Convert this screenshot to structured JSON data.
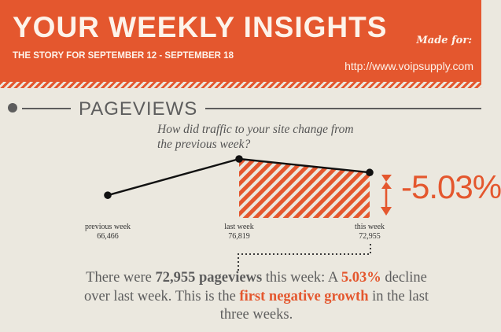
{
  "header": {
    "title": "YOUR WEEKLY INSIGHTS",
    "subtitle": "THE STORY FOR SEPTEMBER 12 - SEPTEMBER 18",
    "made_for_label": "Made for:",
    "site_url": "http://www.voipsupply.com"
  },
  "section": {
    "heading": "PAGEVIEWS",
    "question": "How did traffic to your site change from the previous week?"
  },
  "chart_data": {
    "type": "line",
    "categories": [
      "previous week",
      "last week",
      "this week"
    ],
    "values": [
      66466,
      76819,
      72955
    ],
    "value_labels": [
      "66,466",
      "76,819",
      "72,955"
    ],
    "change_label": "-5.03%",
    "highlight_segment": {
      "from": "last week",
      "to": "this week",
      "pattern": "diagonal-stripes"
    },
    "grid": false,
    "colors": {
      "line": "#111111",
      "accent": "#e4572e"
    }
  },
  "summary": {
    "p1": "There were ",
    "pageviews_value": "72,955",
    "pageviews_word": "pageviews",
    "p2": " this week: A ",
    "change_pct": "5.03%",
    "p3": " decline over last week. This is the ",
    "highlight": "first negative growth",
    "p4": " in the last three weeks."
  },
  "colors": {
    "accent": "#e4572e",
    "background": "#ebe8df",
    "text": "#5d5d5d"
  }
}
